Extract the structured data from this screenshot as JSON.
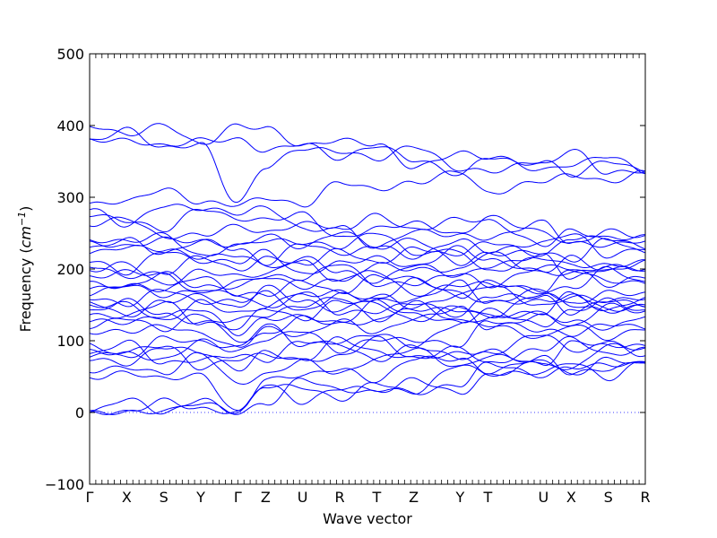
{
  "chart_data": {
    "type": "line",
    "title": "",
    "xlabel": "Wave vector",
    "ylabel": "Frequency (cm^-1)",
    "ylabel_prefix": "Frequency (",
    "ylabel_unit": "cm",
    "ylabel_exp": "−1",
    "ylabel_suffix": ")",
    "ylim": [
      -100,
      500
    ],
    "yticks": [
      -100,
      0,
      100,
      200,
      300,
      400,
      500
    ],
    "ytick_labels": [
      "−100",
      "0",
      "100",
      "200",
      "300",
      "400",
      "500"
    ],
    "xlim": [
      0,
      14
    ],
    "high_symmetry_points": [
      {
        "label": "Γ",
        "x": 0
      },
      {
        "label": "X",
        "x": 1
      },
      {
        "label": "S",
        "x": 2
      },
      {
        "label": "Y",
        "x": 3
      },
      {
        "label": "Γ",
        "x": 4
      },
      {
        "label": "Z",
        "x": 4.75
      },
      {
        "label": "U",
        "x": 5.75
      },
      {
        "label": "R",
        "x": 6.75
      },
      {
        "label": "T",
        "x": 7.75
      },
      {
        "label": "Z",
        "x": 8.75
      },
      {
        "label": "Y",
        "x": 10
      },
      {
        "label": "T",
        "x": 10.75
      },
      {
        "label": "U",
        "x": 12.25
      },
      {
        "label": "X",
        "x": 13
      },
      {
        "label": "S",
        "x": 14
      },
      {
        "label": "R",
        "x": 15
      }
    ],
    "x_domain": [
      0,
      15
    ],
    "zero_line": {
      "y": 0,
      "style": "dotted",
      "color": "#0000ff"
    },
    "line_color": "#0000ff",
    "grid": false,
    "legend": "none",
    "band_anchor_freqs": {
      "gamma_start": [
        0,
        0,
        0,
        48,
        58,
        75,
        78,
        80,
        85,
        95,
        112,
        120,
        128,
        135,
        140,
        148,
        155,
        160,
        165,
        172,
        180,
        188,
        198,
        205,
        212,
        222,
        228,
        236,
        240,
        262,
        276,
        284,
        290,
        378,
        380,
        400
      ],
      "gamma_mid": [
        0,
        0,
        0,
        40,
        60,
        75,
        80,
        85,
        90,
        100,
        110,
        118,
        130,
        138,
        145,
        155,
        165,
        175,
        182,
        190,
        198,
        210,
        220,
        228,
        232,
        260,
        270,
        278,
        290,
        292,
        380,
        400
      ],
      "r_end": [
        68,
        72,
        80,
        88,
        92,
        118,
        135,
        140,
        148,
        150,
        160,
        165,
        180,
        190,
        200,
        210,
        222,
        230,
        240,
        245,
        335,
        336,
        337
      ]
    }
  }
}
